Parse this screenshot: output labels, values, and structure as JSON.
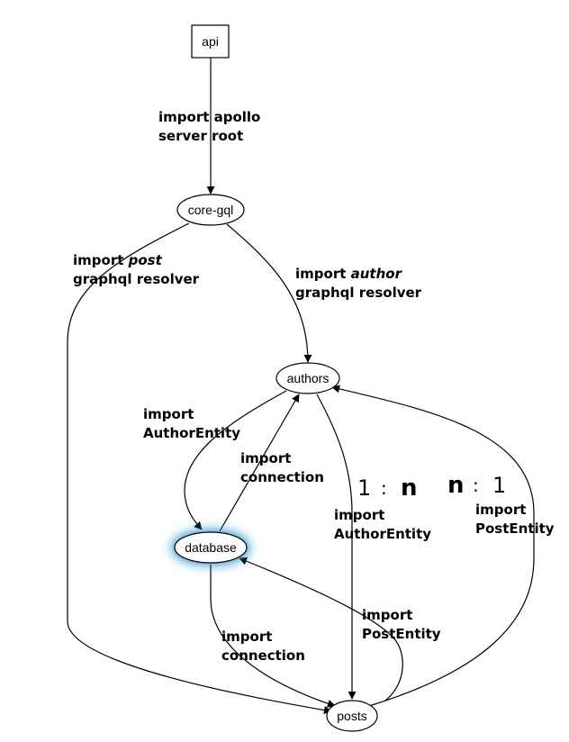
{
  "nodes": {
    "api": "api",
    "core_gql": "core-gql",
    "authors": "authors",
    "database": "database",
    "posts": "posts"
  },
  "edge_labels": {
    "api_core": [
      "import apollo",
      "server root"
    ],
    "core_posts": {
      "pre": "import ",
      "em": "post",
      "line2": "graphql resolver"
    },
    "core_authors": {
      "pre": "import ",
      "em": "author",
      "line2": "graphql resolver"
    },
    "authors_database": [
      "import",
      "AuthorEntity"
    ],
    "database_authors": [
      "import",
      "connection"
    ],
    "authors_posts": [
      "import",
      "AuthorEntity"
    ],
    "posts_authors": [
      "import",
      "PostEntity"
    ],
    "database_posts": [
      "import",
      "connection"
    ],
    "posts_database": [
      "import",
      "PostEntity"
    ]
  },
  "cardinality": {
    "left": {
      "a": "1",
      "sep": ":",
      "b": "n"
    },
    "right": {
      "a": "n",
      "sep": ":",
      "b": "1"
    }
  },
  "colors": {
    "highlight_glow": "#1a8ac8"
  }
}
